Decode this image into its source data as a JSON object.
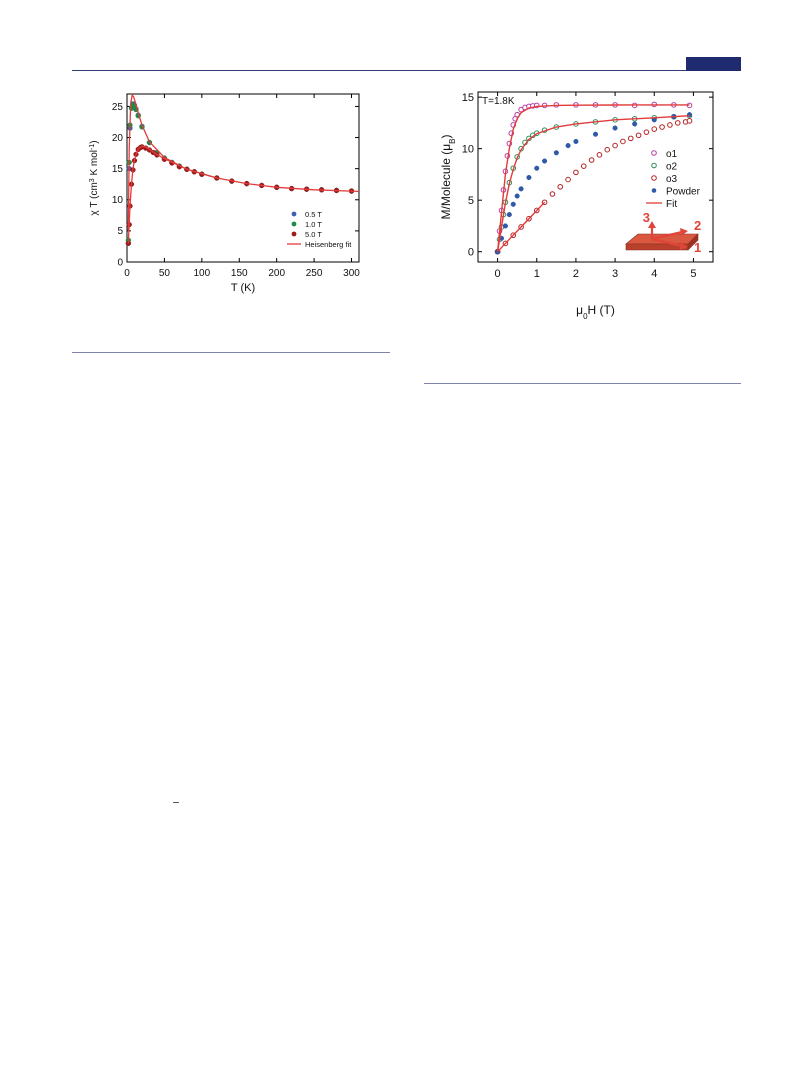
{
  "header": {
    "rule_color": "#2f3c78",
    "tab_color": "#1f2b6e"
  },
  "chart_data": [
    {
      "type": "scatter",
      "xlabel": "T (K)",
      "ylabel_parts": [
        "χ T (cm",
        "3",
        " K mol",
        "-1",
        ")"
      ],
      "xlim": [
        0,
        310
      ],
      "ylim": [
        0,
        27
      ],
      "xticks": [
        0,
        50,
        100,
        150,
        200,
        250,
        300
      ],
      "yticks": [
        0,
        5,
        10,
        15,
        20,
        25
      ],
      "grid": false,
      "legend_position": "bottom-right",
      "series": [
        {
          "name": "0.5 T",
          "color": "#3d5fae",
          "marker": "filled-circle",
          "x": [
            1.8,
            3,
            4,
            6,
            8,
            10,
            12,
            15,
            20,
            30,
            40,
            50,
            60,
            70,
            80,
            90,
            100,
            120,
            140,
            160,
            180,
            200,
            220,
            240,
            260,
            280,
            300
          ],
          "y": [
            3,
            15,
            21.5,
            24.8,
            25.4,
            25.2,
            24.6,
            23.6,
            21.8,
            19.2,
            17.6,
            16.7,
            16.0,
            15.4,
            14.9,
            14.5,
            14.1,
            13.5,
            13.0,
            12.6,
            12.3,
            12.0,
            11.8,
            11.7,
            11.6,
            11.5,
            11.4
          ]
        },
        {
          "name": "1.0 T",
          "color": "#1f8a47",
          "marker": "filled-circle",
          "x": [
            1.8,
            3,
            4,
            6,
            8,
            10,
            12,
            15,
            20,
            30,
            40,
            50,
            60,
            70,
            80,
            90,
            100,
            120,
            140,
            160,
            180,
            200,
            220,
            240,
            260,
            280,
            300
          ],
          "y": [
            3.5,
            16,
            22,
            24.7,
            25.2,
            25.0,
            24.5,
            23.5,
            21.7,
            19.2,
            17.6,
            16.7,
            16.0,
            15.4,
            14.9,
            14.5,
            14.1,
            13.5,
            13.0,
            12.6,
            12.3,
            12.0,
            11.8,
            11.7,
            11.6,
            11.5,
            11.4
          ]
        },
        {
          "name": "5.0 T",
          "color": "#9c1c1c",
          "marker": "filled-circle",
          "x": [
            1.8,
            3,
            4,
            6,
            8,
            10,
            12,
            15,
            18,
            20,
            25,
            30,
            35,
            40,
            50,
            60,
            70,
            80,
            90,
            100,
            120,
            140,
            160,
            180,
            200,
            220,
            240,
            260,
            280,
            300
          ],
          "y": [
            3,
            6,
            9,
            12.5,
            14.8,
            16.3,
            17.3,
            18.1,
            18.4,
            18.5,
            18.3,
            18.0,
            17.6,
            17.2,
            16.5,
            15.9,
            15.3,
            14.9,
            14.5,
            14.1,
            13.5,
            13.0,
            12.6,
            12.3,
            12.0,
            11.8,
            11.7,
            11.6,
            11.5,
            11.4
          ]
        },
        {
          "name": "Heisenberg fit",
          "color": "#e23b3b",
          "marker": "line",
          "x": [
            1.8,
            3,
            5,
            7,
            9,
            12,
            15,
            20,
            30,
            50,
            80,
            120,
            160,
            200,
            250,
            300,
            310
          ],
          "y": [
            5,
            18,
            25.5,
            26.8,
            26.5,
            25.3,
            24.0,
            22.0,
            19.3,
            16.8,
            14.9,
            13.5,
            12.6,
            12.0,
            11.6,
            11.4,
            11.35
          ]
        },
        {
          "name": "",
          "color": "#e23b3b",
          "marker": "line",
          "x": [
            1.8,
            4,
            6,
            8,
            10,
            13,
            16,
            20,
            25,
            30,
            40,
            50,
            80,
            120
          ],
          "y": [
            3,
            9,
            12.5,
            15,
            16.4,
            17.6,
            18.3,
            18.6,
            18.5,
            18.1,
            17.3,
            16.6,
            14.9,
            13.5
          ]
        }
      ]
    },
    {
      "type": "scatter",
      "xlabel_parts": [
        "μ",
        "0",
        "H (T)"
      ],
      "ylabel_parts": [
        "M/Molecule (μ",
        "B",
        ")"
      ],
      "annotation": "T=1.8K",
      "xlim": [
        -0.5,
        5.5
      ],
      "ylim": [
        -1,
        15.5
      ],
      "xticks": [
        0,
        1,
        2,
        3,
        4,
        5
      ],
      "yticks": [
        0,
        5,
        10,
        15
      ],
      "grid": false,
      "legend_position": "right",
      "inset_labels": [
        "3",
        "2",
        "1"
      ],
      "series": [
        {
          "name": "o1",
          "color": "#b43ea5",
          "marker": "open-circle",
          "x": [
            0,
            0.05,
            0.1,
            0.15,
            0.2,
            0.25,
            0.3,
            0.35,
            0.4,
            0.45,
            0.5,
            0.6,
            0.7,
            0.8,
            0.9,
            1.0,
            1.2,
            1.5,
            2.0,
            2.5,
            3.0,
            3.5,
            4.0,
            4.5,
            4.9
          ],
          "y": [
            0,
            2,
            4,
            6,
            7.8,
            9.3,
            10.5,
            11.5,
            12.3,
            12.9,
            13.3,
            13.8,
            14.0,
            14.1,
            14.15,
            14.2,
            14.2,
            14.25,
            14.25,
            14.25,
            14.25,
            14.2,
            14.3,
            14.25,
            14.2
          ]
        },
        {
          "name": "o2",
          "color": "#2e8f5a",
          "marker": "open-circle",
          "x": [
            0,
            0.05,
            0.1,
            0.15,
            0.2,
            0.3,
            0.4,
            0.5,
            0.6,
            0.7,
            0.8,
            0.9,
            1.0,
            1.2,
            1.5,
            2.0,
            2.5,
            3.0,
            3.5,
            4.0,
            4.5,
            4.9
          ],
          "y": [
            0,
            1.2,
            2.4,
            3.6,
            4.8,
            6.7,
            8.1,
            9.2,
            10.0,
            10.6,
            11.0,
            11.3,
            11.5,
            11.8,
            12.1,
            12.4,
            12.6,
            12.8,
            12.9,
            13.0,
            13.1,
            13.2
          ]
        },
        {
          "name": "o3",
          "color": "#b52424",
          "marker": "open-circle",
          "x": [
            0,
            0.2,
            0.4,
            0.6,
            0.8,
            1.0,
            1.2,
            1.4,
            1.6,
            1.8,
            2.0,
            2.2,
            2.4,
            2.6,
            2.8,
            3.0,
            3.2,
            3.4,
            3.6,
            3.8,
            4.0,
            4.2,
            4.4,
            4.6,
            4.8,
            4.9
          ],
          "y": [
            0,
            0.8,
            1.6,
            2.4,
            3.2,
            4.0,
            4.8,
            5.6,
            6.3,
            7.0,
            7.7,
            8.3,
            8.9,
            9.4,
            9.9,
            10.3,
            10.7,
            11.0,
            11.3,
            11.6,
            11.9,
            12.1,
            12.3,
            12.5,
            12.6,
            12.7
          ]
        },
        {
          "name": "Powder",
          "color": "#2f5aa8",
          "marker": "filled-circle",
          "x": [
            0,
            0.1,
            0.2,
            0.3,
            0.4,
            0.5,
            0.6,
            0.8,
            1.0,
            1.2,
            1.5,
            1.8,
            2.0,
            2.5,
            3.0,
            3.5,
            4.0,
            4.5,
            4.9
          ],
          "y": [
            0,
            1.3,
            2.5,
            3.6,
            4.6,
            5.4,
            6.1,
            7.2,
            8.1,
            8.8,
            9.6,
            10.3,
            10.7,
            11.4,
            12.0,
            12.4,
            12.8,
            13.1,
            13.3
          ]
        },
        {
          "name": "Fit",
          "color": "#e23b3b",
          "marker": "line",
          "x": [
            0,
            0.1,
            0.2,
            0.3,
            0.4,
            0.5,
            0.6,
            0.8,
            1.0,
            1.5,
            2.0,
            3.0,
            4.0,
            4.9
          ],
          "y": [
            0,
            3.8,
            7.5,
            10.0,
            11.9,
            12.9,
            13.5,
            13.95,
            14.1,
            14.2,
            14.22,
            14.24,
            14.25,
            14.25
          ]
        },
        {
          "name": "",
          "color": "#e23b3b",
          "marker": "line",
          "x": [
            0,
            0.1,
            0.2,
            0.3,
            0.4,
            0.5,
            0.6,
            0.8,
            1.0,
            1.5,
            2.0,
            3.0,
            4.0,
            4.9
          ],
          "y": [
            0,
            2.4,
            4.7,
            6.6,
            8.0,
            9.1,
            9.9,
            10.9,
            11.45,
            12.1,
            12.4,
            12.8,
            13.0,
            13.2
          ]
        },
        {
          "name": "",
          "color": "#e23b3b",
          "marker": "line",
          "x": [
            0,
            0.3,
            0.6,
            1.0,
            1.2
          ],
          "y": [
            0,
            1.2,
            2.4,
            4.0,
            4.8
          ]
        }
      ]
    }
  ]
}
